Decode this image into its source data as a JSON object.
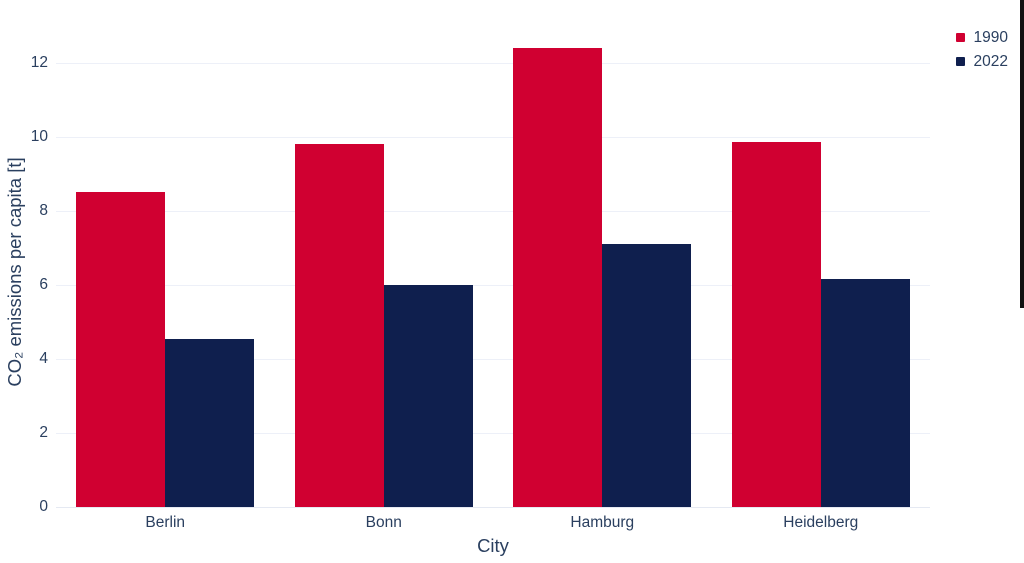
{
  "chart_data": {
    "type": "bar",
    "title": "",
    "categories": [
      "Berlin",
      "Bonn",
      "Hamburg",
      "Heidelberg"
    ],
    "series": [
      {
        "name": "1990",
        "color": "#d00031",
        "values": [
          8.5,
          9.8,
          12.4,
          9.85
        ]
      },
      {
        "name": "2022",
        "color": "#0f1f4e",
        "values": [
          4.55,
          6.0,
          7.1,
          6.15
        ]
      }
    ],
    "xlabel": "City",
    "ylabel": "CO₂ emissions per capita [t]",
    "yticks": [
      0,
      2,
      4,
      6,
      8,
      10,
      12
    ],
    "ylim": [
      0,
      13.15
    ],
    "grid": true,
    "legend_position": "top-right",
    "colors": {
      "background": "#ffffff",
      "text": "#2a3f5f",
      "grid": "#edf0f8",
      "series_1990": "#d00031",
      "series_2022": "#0f1f4e"
    }
  }
}
